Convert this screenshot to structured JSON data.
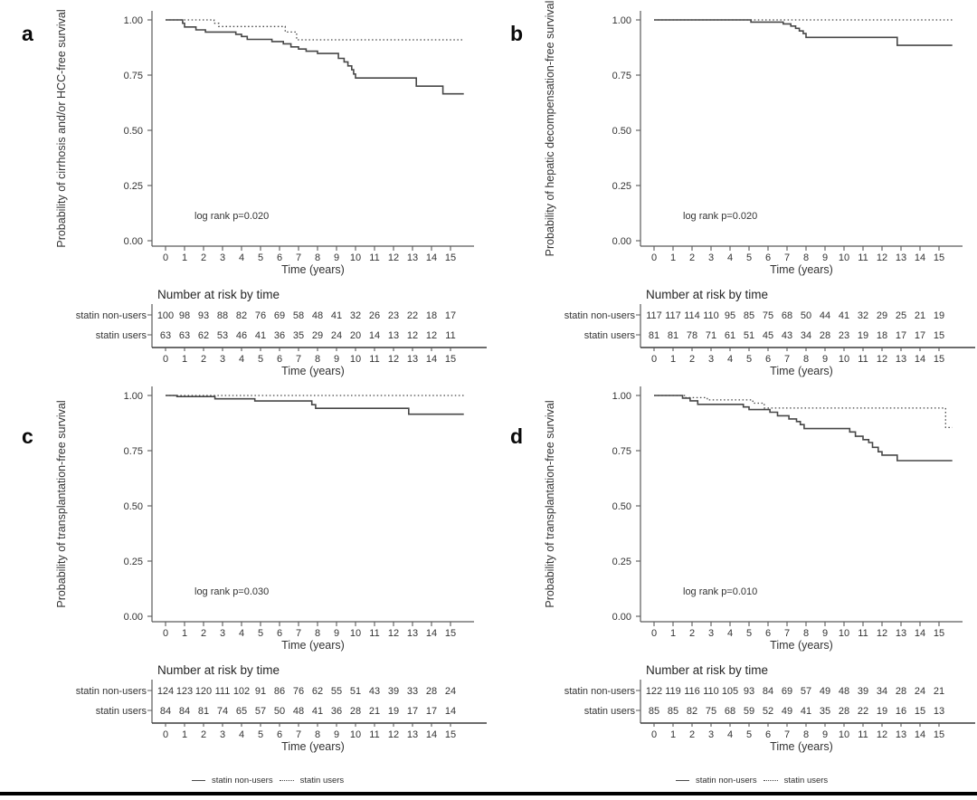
{
  "figure": {
    "background": "#ffffff",
    "curve_color": "#474747",
    "axis_color": "#5a5a5a",
    "text_color": "#333333",
    "bottom_bar_color": "#000000"
  },
  "legends": [
    {
      "items": [
        {
          "label": "statin non-users",
          "style": "solid"
        },
        {
          "label": "statin users",
          "style": "dotted"
        }
      ]
    },
    {
      "items": [
        {
          "label": "statin non-users",
          "style": "solid"
        },
        {
          "label": "statin users",
          "style": "dotted"
        }
      ]
    }
  ],
  "chart_data": [
    {
      "panel": "a",
      "type": "line",
      "subtype": "kaplan-meier-step",
      "title": "",
      "ylabel": "Probability of cirrhosis and/or HCC-free survival",
      "xlabel": "Time (years)",
      "annotation": "log rank p=0.020",
      "xlim": [
        0,
        15.8
      ],
      "ylim": [
        0,
        1.02
      ],
      "x_ticks": [
        0,
        1,
        2,
        3,
        4,
        5,
        6,
        7,
        8,
        9,
        10,
        11,
        12,
        13,
        14,
        15
      ],
      "y_ticks": [
        "1.00",
        "0.75",
        "0.50",
        "0.25",
        "0.00"
      ],
      "y_tick_values": [
        1.0,
        0.75,
        0.5,
        0.25,
        0.0
      ],
      "series": [
        {
          "name": "statin non-users",
          "line": "solid",
          "points": [
            [
              0,
              1.0
            ],
            [
              0.9,
              0.985
            ],
            [
              1.0,
              0.968
            ],
            [
              1.6,
              0.955
            ],
            [
              2.1,
              0.945
            ],
            [
              3.7,
              0.935
            ],
            [
              4.0,
              0.925
            ],
            [
              4.3,
              0.912
            ],
            [
              5.6,
              0.902
            ],
            [
              6.2,
              0.892
            ],
            [
              6.6,
              0.878
            ],
            [
              7.0,
              0.868
            ],
            [
              7.4,
              0.858
            ],
            [
              8.0,
              0.848
            ],
            [
              9.1,
              0.826
            ],
            [
              9.4,
              0.81
            ],
            [
              9.6,
              0.792
            ],
            [
              9.8,
              0.774
            ],
            [
              9.9,
              0.755
            ],
            [
              10.0,
              0.737
            ],
            [
              13.2,
              0.7
            ],
            [
              14.6,
              0.665
            ],
            [
              15.7,
              0.665
            ]
          ]
        },
        {
          "name": "statin users",
          "line": "dotted",
          "points": [
            [
              0,
              1.0
            ],
            [
              2.55,
              0.985
            ],
            [
              2.8,
              0.97
            ],
            [
              6.3,
              0.945
            ],
            [
              6.9,
              0.91
            ],
            [
              15.7,
              0.91
            ]
          ]
        }
      ],
      "risk_table": {
        "title": "Number at risk by time",
        "xlabel": "Time (years)",
        "time_ticks": [
          0,
          1,
          2,
          3,
          4,
          5,
          6,
          7,
          8,
          9,
          10,
          11,
          12,
          13,
          14,
          15
        ],
        "rows": [
          {
            "label": "statin non-users",
            "counts": [
              100,
              98,
              93,
              88,
              82,
              76,
              69,
              58,
              48,
              41,
              32,
              26,
              23,
              22,
              18,
              17
            ]
          },
          {
            "label": "statin users",
            "counts": [
              63,
              63,
              62,
              53,
              46,
              41,
              36,
              35,
              29,
              24,
              20,
              14,
              13,
              12,
              12,
              11
            ]
          }
        ]
      }
    },
    {
      "panel": "b",
      "type": "line",
      "subtype": "kaplan-meier-step",
      "title": "",
      "ylabel": "Probability of hepatic decompensation-free survival",
      "xlabel": "Time (years)",
      "annotation": "log rank p=0.020",
      "xlim": [
        0,
        15.8
      ],
      "ylim": [
        0,
        1.02
      ],
      "x_ticks": [
        0,
        1,
        2,
        3,
        4,
        5,
        6,
        7,
        8,
        9,
        10,
        11,
        12,
        13,
        14,
        15
      ],
      "y_ticks": [
        "1.00",
        "0.75",
        "0.50",
        "0.25",
        "0.00"
      ],
      "y_tick_values": [
        1.0,
        0.75,
        0.5,
        0.25,
        0.0
      ],
      "series": [
        {
          "name": "statin non-users",
          "line": "solid",
          "points": [
            [
              0,
              1.0
            ],
            [
              5.1,
              0.99
            ],
            [
              6.8,
              0.982
            ],
            [
              7.2,
              0.972
            ],
            [
              7.45,
              0.962
            ],
            [
              7.65,
              0.95
            ],
            [
              7.85,
              0.938
            ],
            [
              8.0,
              0.921
            ],
            [
              12.8,
              0.885
            ],
            [
              15.7,
              0.885
            ]
          ]
        },
        {
          "name": "statin users",
          "line": "dotted",
          "points": [
            [
              0,
              1.0
            ],
            [
              15.7,
              1.0
            ]
          ]
        }
      ],
      "risk_table": {
        "title": "Number at risk by time",
        "xlabel": "Time (years)",
        "time_ticks": [
          0,
          1,
          2,
          3,
          4,
          5,
          6,
          7,
          8,
          9,
          10,
          11,
          12,
          13,
          14,
          15
        ],
        "rows": [
          {
            "label": "statin non-users",
            "counts": [
              117,
              117,
              114,
              110,
              95,
              85,
              75,
              68,
              50,
              44,
              41,
              32,
              29,
              25,
              21,
              19
            ]
          },
          {
            "label": "statin users",
            "counts": [
              81,
              81,
              78,
              71,
              61,
              51,
              45,
              43,
              34,
              28,
              23,
              19,
              18,
              17,
              17,
              15
            ]
          }
        ]
      }
    },
    {
      "panel": "c",
      "type": "line",
      "subtype": "kaplan-meier-step",
      "title": "",
      "ylabel": "Probability of transplantation-free survival",
      "xlabel": "Time (years)",
      "annotation": "log rank p=0.030",
      "xlim": [
        0,
        15.8
      ],
      "ylim": [
        0,
        1.02
      ],
      "x_ticks": [
        0,
        1,
        2,
        3,
        4,
        5,
        6,
        7,
        8,
        9,
        10,
        11,
        12,
        13,
        14,
        15
      ],
      "y_ticks": [
        "1.00",
        "0.75",
        "0.50",
        "0.25",
        "0.00"
      ],
      "y_tick_values": [
        1.0,
        0.75,
        0.5,
        0.25,
        0.0
      ],
      "series": [
        {
          "name": "statin non-users",
          "line": "solid",
          "points": [
            [
              0,
              1.0
            ],
            [
              0.6,
              0.995
            ],
            [
              2.6,
              0.985
            ],
            [
              4.7,
              0.975
            ],
            [
              7.7,
              0.958
            ],
            [
              7.9,
              0.942
            ],
            [
              12.8,
              0.915
            ],
            [
              15.7,
              0.915
            ]
          ]
        },
        {
          "name": "statin users",
          "line": "dotted",
          "points": [
            [
              0,
              1.0
            ],
            [
              15.7,
              1.0
            ]
          ]
        }
      ],
      "risk_table": {
        "title": "Number at risk by time",
        "xlabel": "Time (years)",
        "time_ticks": [
          0,
          1,
          2,
          3,
          4,
          5,
          6,
          7,
          8,
          9,
          10,
          11,
          12,
          13,
          14,
          15
        ],
        "rows": [
          {
            "label": "statin non-users",
            "counts": [
              124,
              123,
              120,
              111,
              102,
              91,
              86,
              76,
              62,
              55,
              51,
              43,
              39,
              33,
              28,
              24
            ]
          },
          {
            "label": "statin users",
            "counts": [
              84,
              84,
              81,
              74,
              65,
              57,
              50,
              48,
              41,
              36,
              28,
              21,
              19,
              17,
              17,
              14
            ]
          }
        ]
      }
    },
    {
      "panel": "d",
      "type": "line",
      "subtype": "kaplan-meier-step",
      "title": "",
      "ylabel": "Probability of transplantation-free survival",
      "xlabel": "Time (years)",
      "annotation": "log rank p=0.010",
      "xlim": [
        0,
        15.8
      ],
      "ylim": [
        0,
        1.02
      ],
      "x_ticks": [
        0,
        1,
        2,
        3,
        4,
        5,
        6,
        7,
        8,
        9,
        10,
        11,
        12,
        13,
        14,
        15
      ],
      "y_ticks": [
        "1.00",
        "0.75",
        "0.50",
        "0.25",
        "0.00"
      ],
      "y_tick_values": [
        1.0,
        0.75,
        0.5,
        0.25,
        0.0
      ],
      "series": [
        {
          "name": "statin non-users",
          "line": "solid",
          "points": [
            [
              0,
              1.0
            ],
            [
              1.5,
              0.988
            ],
            [
              1.9,
              0.976
            ],
            [
              2.3,
              0.96
            ],
            [
              4.7,
              0.948
            ],
            [
              5.0,
              0.936
            ],
            [
              6.1,
              0.924
            ],
            [
              6.5,
              0.908
            ],
            [
              7.1,
              0.894
            ],
            [
              7.5,
              0.882
            ],
            [
              7.7,
              0.868
            ],
            [
              7.9,
              0.85
            ],
            [
              10.3,
              0.835
            ],
            [
              10.6,
              0.815
            ],
            [
              11.0,
              0.8
            ],
            [
              11.3,
              0.787
            ],
            [
              11.5,
              0.765
            ],
            [
              11.8,
              0.745
            ],
            [
              12.0,
              0.73
            ],
            [
              12.8,
              0.705
            ],
            [
              15.7,
              0.705
            ]
          ]
        },
        {
          "name": "statin users",
          "line": "dotted",
          "points": [
            [
              0,
              1.0
            ],
            [
              1.6,
              0.99
            ],
            [
              2.8,
              0.98
            ],
            [
              5.2,
              0.965
            ],
            [
              5.8,
              0.943
            ],
            [
              15.35,
              0.855
            ],
            [
              15.7,
              0.855
            ]
          ]
        }
      ],
      "risk_table": {
        "title": "Number at risk by time",
        "xlabel": "Time (years)",
        "time_ticks": [
          0,
          1,
          2,
          3,
          4,
          5,
          6,
          7,
          8,
          9,
          10,
          11,
          12,
          13,
          14,
          15
        ],
        "rows": [
          {
            "label": "statin non-users",
            "counts": [
              122,
              119,
              116,
              110,
              105,
              93,
              84,
              69,
              57,
              49,
              48,
              39,
              34,
              28,
              24,
              21
            ]
          },
          {
            "label": "statin users",
            "counts": [
              85,
              85,
              82,
              75,
              68,
              59,
              52,
              49,
              41,
              35,
              28,
              22,
              19,
              16,
              15,
              13
            ]
          }
        ]
      }
    }
  ]
}
